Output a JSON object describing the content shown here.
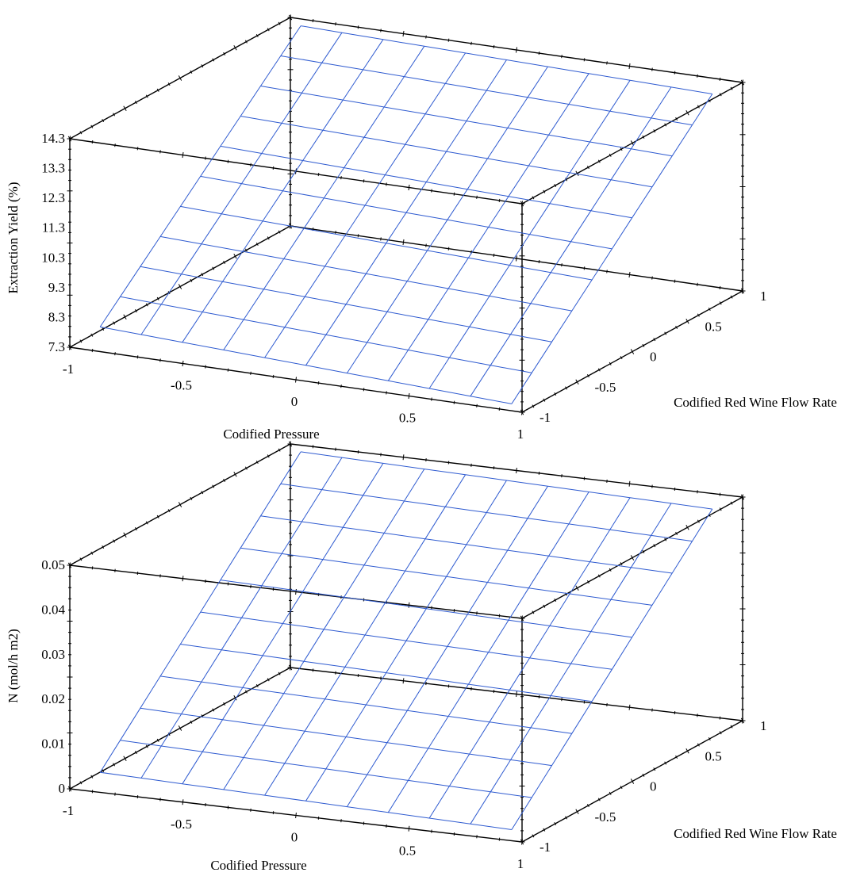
{
  "chart_data": [
    {
      "type": "surface",
      "xlabel": "Codified Pressure",
      "ylabel": "Codified Red Wine Flow Rate",
      "zlabel": "Extraction Yield (%)",
      "x_ticks": [
        "-1",
        "-0.5",
        "0",
        "0.5",
        "1"
      ],
      "y_ticks": [
        "-1",
        "-0.5",
        "0",
        "0.5",
        "1"
      ],
      "z_ticks": [
        "7.3",
        "8.3",
        "9.3",
        "10.3",
        "11.3",
        "12.3",
        "13.3",
        "14.3"
      ],
      "xlim": [
        -1,
        1
      ],
      "ylim": [
        -1,
        1
      ],
      "zlim": [
        7.3,
        14.3
      ],
      "grid_lines": 11,
      "corner_values": {
        "x_-1_y_-1": 7.9,
        "x_1_y_-1": 7.3,
        "x_-1_y_1": 14.3,
        "x_1_y_1": 14.0
      },
      "mesh_color": "#2f5bd0"
    },
    {
      "type": "surface",
      "xlabel": "Codified Pressure",
      "ylabel": "Codified Red Wine Flow Rate",
      "zlabel": "N (mol/h m2)",
      "x_ticks": [
        "-1",
        "-0.5",
        "0",
        "0.5",
        "1"
      ],
      "y_ticks": [
        "-1",
        "-0.5",
        "0",
        "0.5",
        "1"
      ],
      "z_ticks": [
        "0",
        "0.01",
        "0.02",
        "0.03",
        "0.04",
        "0.05"
      ],
      "xlim": [
        -1,
        1
      ],
      "ylim": [
        -1,
        1
      ],
      "zlim": [
        0,
        0.05
      ],
      "grid_lines": 11,
      "corner_values": {
        "x_-1_y_-1": 0.003,
        "x_1_y_-1": 0.001,
        "x_-1_y_1": 0.05,
        "x_1_y_1": 0.048
      },
      "mesh_color": "#2f5bd0"
    }
  ]
}
